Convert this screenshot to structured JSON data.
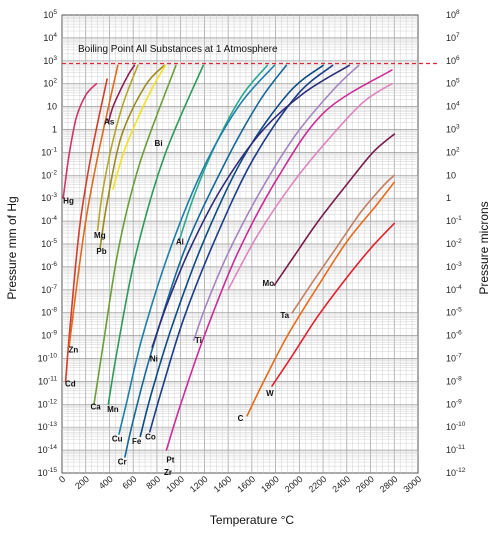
{
  "chart_data": {
    "type": "line",
    "xlabel": "Temperature °C",
    "ylabel_left": "Pressure mm of Hg",
    "ylabel_right": "Pressure microns",
    "annotation": "Boiling Point All Substances at 1 Atmosphere",
    "boiling_line_y": 760,
    "xlim": [
      0,
      3000
    ],
    "ylim_log10": [
      -15,
      5
    ],
    "right_axis_offset_log10": 3,
    "x_ticks": [
      "0",
      "200",
      "400",
      "600",
      "800",
      "1000",
      "1200",
      "1400",
      "1600",
      "1800",
      "2000",
      "2200",
      "2400",
      "2600",
      "2800",
      "3000"
    ],
    "y_ticks_left": [
      "10-15",
      "10-14",
      "10-13",
      "10-12",
      "10-11",
      "10-10",
      "10-9",
      "10-8",
      "10-7",
      "10-6",
      "10-5",
      "10-4",
      "10-3",
      "10-2",
      "10-1",
      "1",
      "10",
      "102",
      "103",
      "104",
      "105"
    ],
    "y_ticks_right": [
      "10-12",
      "10-11",
      "10-10",
      "10-9",
      "10-8",
      "10-7",
      "10-6",
      "10-5",
      "10-4",
      "10-3",
      "10-2",
      "10-1",
      "1",
      "10",
      "102",
      "103",
      "104",
      "105",
      "106",
      "107",
      "108"
    ],
    "grid": true,
    "legend": "none",
    "series": [
      {
        "label": "Hg",
        "color": "#d0366b",
        "x": [
          10,
          60,
          120,
          200,
          290
        ],
        "y": [
          -3,
          -1.1,
          0.5,
          1.5,
          2.0
        ],
        "lx": 10,
        "ly": -3.1
      },
      {
        "label": "Cd",
        "color": "#d23f2c",
        "x": [
          30,
          70,
          150,
          250,
          380
        ],
        "y": [
          -11,
          -8.5,
          -4.2,
          -1,
          2.2
        ],
        "lx": 25,
        "ly": -11.1
      },
      {
        "label": "Zn",
        "color": "#e26a1e",
        "x": [
          60,
          120,
          200,
          300,
          470
        ],
        "y": [
          -9.5,
          -7,
          -4,
          -1.2,
          2.8
        ],
        "lx": 55,
        "ly": -9.6
      },
      {
        "label": "As",
        "color": "#8e1d52",
        "x": [
          390,
          430,
          500,
          560,
          610
        ],
        "y": [
          0.3,
          1.0,
          1.8,
          2.4,
          2.8
        ],
        "lx": 355,
        "ly": 0.35
      },
      {
        "label": "Mg",
        "color": "#b5a52c",
        "x": [
          300,
          340,
          420,
          520,
          640
        ],
        "y": [
          -4.4,
          -2.8,
          -0.7,
          1.2,
          2.8
        ],
        "lx": 270,
        "ly": -4.6
      },
      {
        "label": "Pb",
        "color": "#9c8a20",
        "x": [
          320,
          380,
          500,
          700,
          860
        ],
        "y": [
          -5.2,
          -3.2,
          -0.3,
          1.9,
          2.8
        ],
        "lx": 290,
        "ly": -5.3
      },
      {
        "label": "Bi",
        "color": "#f2e11e",
        "x": [
          430,
          520,
          640,
          760,
          870
        ],
        "y": [
          -2.6,
          -1,
          0.5,
          1.8,
          2.8
        ],
        "lx": 780,
        "ly": -0.6
      },
      {
        "label": "Ca",
        "color": "#6b9e3a",
        "x": [
          270,
          350,
          480,
          660,
          960
        ],
        "y": [
          -12,
          -9.3,
          -5.1,
          -1.4,
          2.8
        ],
        "lx": 240,
        "ly": -12.1
      },
      {
        "label": "Mn",
        "color": "#2e9a5a",
        "x": [
          390,
          470,
          620,
          860,
          1190
        ],
        "y": [
          -12,
          -9.5,
          -5.5,
          -1.2,
          2.8
        ],
        "lx": 380,
        "ly": -12.2
      },
      {
        "label": "Al",
        "color": "#2aa890",
        "x": [
          990,
          1120,
          1300,
          1520,
          1730
        ],
        "y": [
          -4.8,
          -2.8,
          -0.6,
          1.5,
          2.8
        ],
        "lx": 960,
        "ly": -4.9
      },
      {
        "label": "Cu",
        "color": "#1f7fa8",
        "x": [
          480,
          550,
          680,
          920,
          1200,
          1500,
          1790
        ],
        "y": [
          -13.3,
          -11.8,
          -9,
          -5.1,
          -1.6,
          1.1,
          2.8
        ],
        "lx": 420,
        "ly": -13.5
      },
      {
        "label": "Cr",
        "color": "#16679a",
        "x": [
          530,
          600,
          760,
          1030,
          1360,
          1660,
          1890
        ],
        "y": [
          -14.3,
          -12.7,
          -9.6,
          -5.3,
          -1.6,
          1.2,
          2.8
        ],
        "lx": 470,
        "ly": -14.5
      },
      {
        "label": "Fe",
        "color": "#0d4b86",
        "x": [
          660,
          760,
          940,
          1200,
          1530,
          1910,
          2200
        ],
        "y": [
          -13.4,
          -11.4,
          -8.4,
          -4.8,
          -1.2,
          1.6,
          2.8
        ],
        "lx": 590,
        "ly": -13.6
      },
      {
        "label": "Co",
        "color": "#1c3d8c",
        "x": [
          740,
          850,
          1030,
          1290,
          1610,
          1980,
          2280
        ],
        "y": [
          -13.2,
          -11.2,
          -8.2,
          -4.8,
          -1.3,
          1.5,
          2.8
        ],
        "lx": 700,
        "ly": -13.4
      },
      {
        "label": "Ni",
        "color": "#2b2c7a",
        "x": [
          760,
          880,
          1070,
          1340,
          1680,
          2040,
          2420
        ],
        "y": [
          -9.5,
          -7.7,
          -5.3,
          -2.6,
          -0.1,
          1.6,
          2.8
        ],
        "lx": 740,
        "ly": -10.0
      },
      {
        "label": "Ti",
        "color": "#a684c2",
        "x": [
          1110,
          1220,
          1400,
          1650,
          1960,
          2280,
          2500
        ],
        "y": [
          -9.2,
          -7.6,
          -5.4,
          -2.9,
          -0.3,
          1.7,
          2.8
        ],
        "lx": 1120,
        "ly": -9.2
      },
      {
        "label": "Pt",
        "color": "#cc2b9a",
        "x": [
          880,
          1000,
          1200,
          1480,
          1830,
          2220,
          2780
        ],
        "y": [
          -14,
          -12,
          -9,
          -5.4,
          -2,
          0.8,
          2.6
        ],
        "lx": 880,
        "ly": -14.4
      },
      {
        "label": "Zr",
        "color": "#df85bf",
        "x": [
          1400,
          1650,
          1950,
          2250,
          2540,
          2780
        ],
        "y": [
          -7,
          -4.6,
          -2.3,
          -0.4,
          1.2,
          2.0
        ],
        "lx": 860,
        "ly": -14.95
      },
      {
        "label": "Mo",
        "color": "#7a1c4a",
        "x": [
          1790,
          1960,
          2160,
          2400,
          2620,
          2800
        ],
        "y": [
          -6.8,
          -5.5,
          -4,
          -2.4,
          -1,
          -0.2
        ],
        "lx": 1690,
        "ly": -6.7
      },
      {
        "label": "Ta",
        "color": "#c47f63",
        "x": [
          1940,
          2120,
          2320,
          2520,
          2700,
          2800
        ],
        "y": [
          -8,
          -6.6,
          -5.1,
          -3.6,
          -2.5,
          -2
        ],
        "lx": 1840,
        "ly": -8.1
      },
      {
        "label": "C",
        "color": "#e86a1c",
        "x": [
          1560,
          1700,
          1900,
          2150,
          2400,
          2650,
          2800
        ],
        "y": [
          -12.5,
          -11,
          -9,
          -6.9,
          -4.9,
          -3.3,
          -2.3
        ],
        "lx": 1480,
        "ly": -12.6
      },
      {
        "label": "W",
        "color": "#e4202c",
        "x": [
          1770,
          1950,
          2150,
          2380,
          2600,
          2800
        ],
        "y": [
          -11.2,
          -9.8,
          -8.2,
          -6.6,
          -5.2,
          -4.1
        ],
        "lx": 1720,
        "ly": -11.5
      }
    ]
  }
}
